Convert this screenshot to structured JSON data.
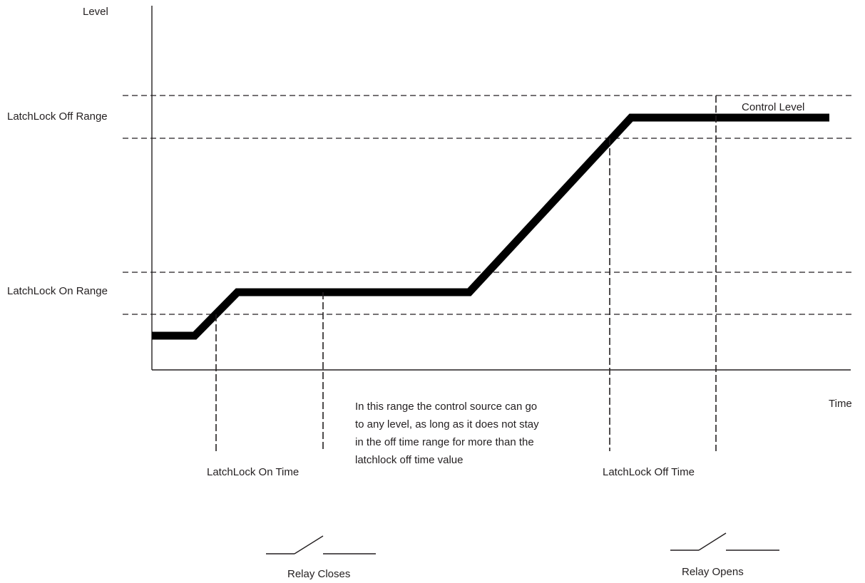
{
  "axes": {
    "y_label": "Level",
    "x_label": "Time"
  },
  "ranges": {
    "off_range_label": "LatchLock Off Range",
    "on_range_label": "LatchLock On Range"
  },
  "curve": {
    "label": "Control Level"
  },
  "times": {
    "on_time_label": "LatchLock On Time",
    "off_time_label": "LatchLock Off Time"
  },
  "note": {
    "lines": [
      "In this range the control source can go",
      "to any level, as long as it does not stay",
      "in the off time range for more than the",
      "latchlock off time value"
    ]
  },
  "relays": {
    "closes_label": "Relay Closes",
    "opens_label": "Relay Opens"
  }
}
